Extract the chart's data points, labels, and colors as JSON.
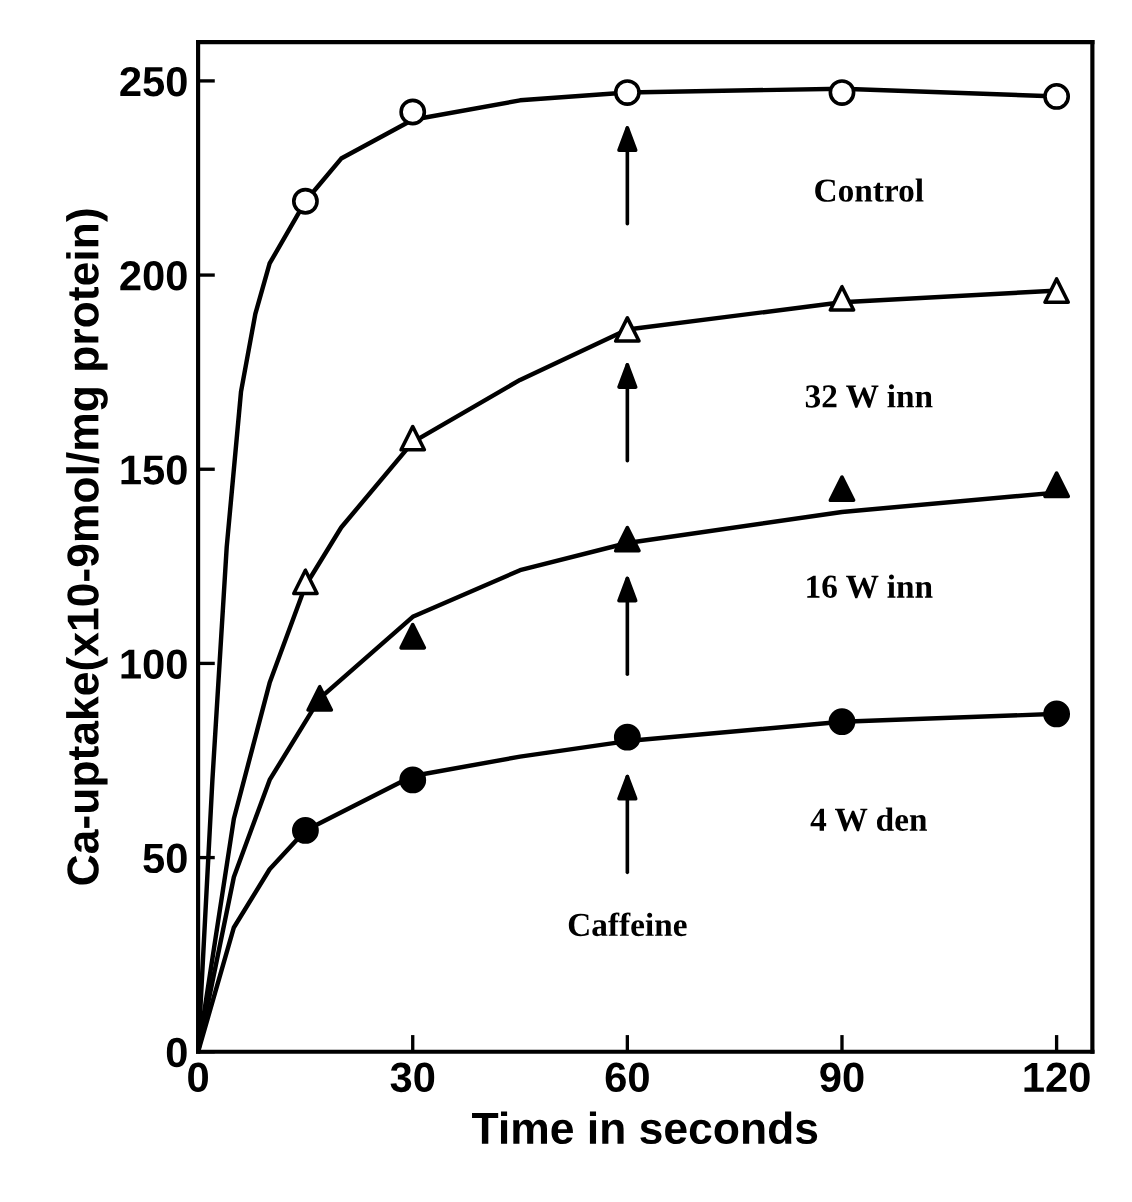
{
  "chart_data": {
    "type": "scatter",
    "xlabel": "Time in seconds",
    "ylabel": "Ca-uptake(x10-9mol/mg protein)",
    "xlim": [
      0,
      125
    ],
    "ylim": [
      0,
      260
    ],
    "xticks": [
      0,
      30,
      60,
      90,
      120
    ],
    "yticks": [
      0,
      50,
      100,
      150,
      200,
      250
    ],
    "grid": false,
    "legend": false,
    "annotations": [
      "Caffeine"
    ],
    "series": [
      {
        "name": "Control",
        "marker": "circle",
        "color": "#ffffff",
        "x": [
          15,
          30,
          60,
          90,
          120
        ],
        "values": [
          219,
          242,
          247,
          247,
          246
        ]
      },
      {
        "name": "32 W inn",
        "marker": "triangle",
        "color": "#ffffff",
        "x": [
          15,
          30,
          60,
          90,
          120
        ],
        "values": [
          121,
          158,
          186,
          194,
          196
        ]
      },
      {
        "name": "16 W inn",
        "marker": "triangle",
        "color": "#000000",
        "x": [
          17,
          30,
          60,
          90,
          120
        ],
        "values": [
          91,
          107,
          132,
          145,
          146
        ]
      },
      {
        "name": "4 W den",
        "marker": "circle",
        "color": "#000000",
        "x": [
          15,
          30,
          60,
          90,
          120
        ],
        "values": [
          57,
          70,
          81,
          85,
          87
        ]
      },
      {
        "type": "line",
        "color": "#000000",
        "x": [
          0,
          2,
          4,
          6,
          8,
          10,
          15,
          20,
          30,
          45,
          60,
          90,
          120
        ],
        "values": [
          0,
          70,
          130,
          170,
          190,
          203,
          219,
          230,
          240,
          245,
          247,
          248,
          246
        ]
      },
      {
        "type": "line",
        "color": "#000000",
        "x": [
          0,
          5,
          10,
          15,
          20,
          30,
          45,
          60,
          90,
          120
        ],
        "values": [
          0,
          60,
          95,
          120,
          135,
          157,
          173,
          186,
          193,
          196
        ]
      },
      {
        "type": "line",
        "color": "#000000",
        "x": [
          0,
          5,
          10,
          17,
          30,
          45,
          60,
          90,
          120
        ],
        "values": [
          0,
          45,
          70,
          91,
          112,
          124,
          131,
          139,
          144
        ]
      },
      {
        "type": "line",
        "color": "#000000",
        "x": [
          0,
          5,
          10,
          15,
          30,
          45,
          60,
          90,
          120
        ],
        "values": [
          0,
          32,
          47,
          57,
          71,
          76,
          80,
          85,
          87
        ]
      }
    ]
  }
}
